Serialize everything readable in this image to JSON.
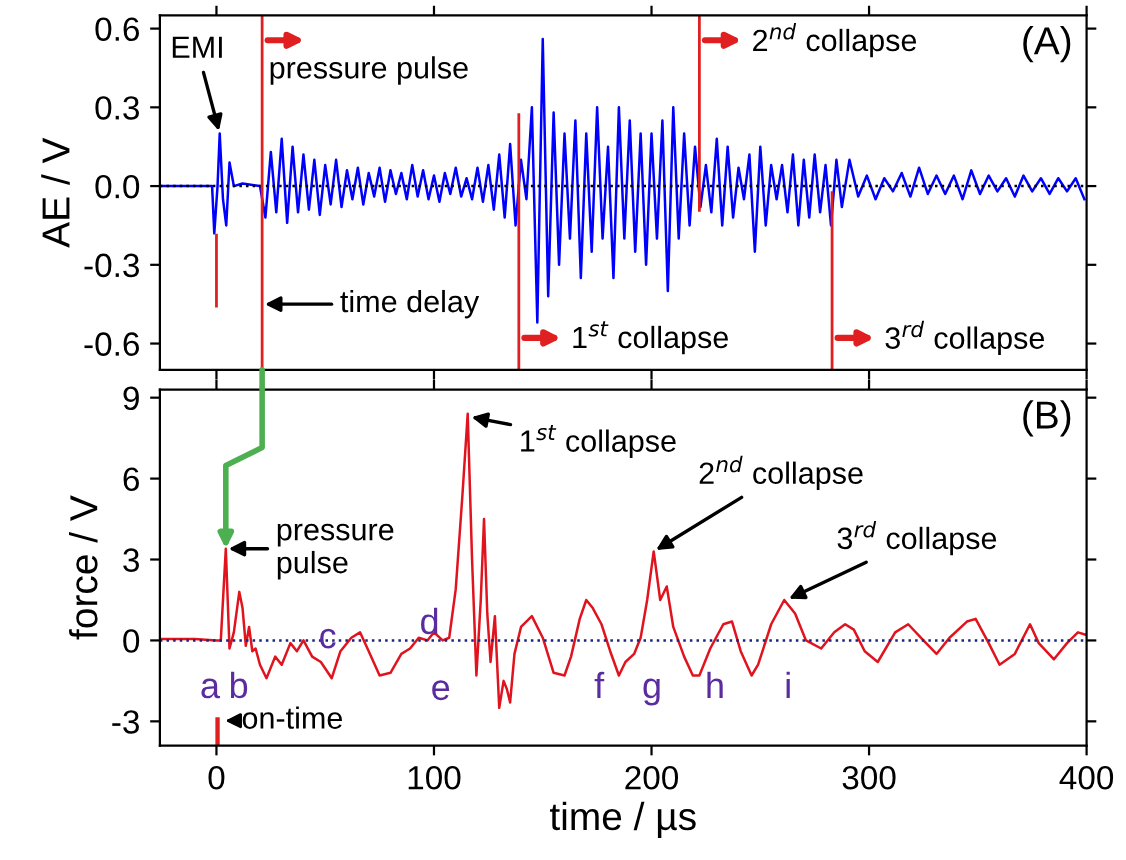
{
  "chart_data": [
    {
      "type": "line",
      "ylabel": "AE / V",
      "xlim": [
        -26,
        400
      ],
      "ylim": [
        -0.7,
        0.65
      ],
      "xticks": [
        0,
        100,
        200,
        300,
        400
      ],
      "yticks": [
        {
          "value": -0.6,
          "label": "-0.6"
        },
        {
          "value": -0.3,
          "label": "-0.3"
        },
        {
          "value": 0,
          "label": "0.0"
        },
        {
          "value": 0.3,
          "label": "0.3"
        },
        {
          "value": 0.6,
          "label": "0.6"
        }
      ],
      "tick_labels": "y",
      "grid": false,
      "marker": "none",
      "line_style": "solid",
      "series": [
        {
          "color": "#0000ff",
          "x": [
            -26,
            -10,
            -2,
            -1,
            0.5,
            1.5,
            3,
            4.5,
            6,
            8,
            12,
            20,
            22.5,
            25,
            27.5,
            30,
            32.5,
            35,
            37.5,
            40,
            42.5,
            45,
            47.5,
            50,
            52.5,
            55,
            57.5,
            60,
            62.5,
            65,
            67.5,
            70,
            72.5,
            75,
            77.5,
            80,
            82.5,
            85,
            87.5,
            90,
            92.5,
            95,
            97.5,
            100,
            102.5,
            105,
            107.5,
            110,
            112.5,
            115,
            117.5,
            120,
            122.5,
            125,
            127.5,
            130,
            132.5,
            135,
            137.5,
            140,
            142.5,
            145,
            147.5,
            150,
            152.5,
            155,
            157.5,
            160,
            162.5,
            165,
            167.5,
            170,
            172.5,
            175,
            177.5,
            180,
            182.5,
            185,
            187.5,
            190,
            192.5,
            195,
            197.5,
            200,
            202.5,
            205,
            207.5,
            210,
            212.5,
            215,
            217.5,
            220,
            222.5,
            225,
            227.5,
            230,
            232.5,
            235,
            237.5,
            240,
            242.5,
            245,
            247.5,
            250,
            252.5,
            255,
            257.5,
            260,
            262.5,
            265,
            267.5,
            270,
            272.5,
            275,
            277.5,
            280,
            282.5,
            285,
            287.5,
            291,
            295,
            299,
            303,
            307,
            311,
            315,
            319,
            323,
            327,
            331,
            335,
            339,
            343,
            347,
            351,
            355,
            359,
            363,
            367,
            371,
            375,
            379,
            383,
            387,
            391,
            395,
            399
          ],
          "values": [
            0,
            0,
            0,
            -0.18,
            0,
            0.2,
            -0.05,
            -0.15,
            0.09,
            0,
            0.01,
            0,
            -0.12,
            0.13,
            -0.1,
            0.18,
            -0.14,
            0.15,
            -0.1,
            0.12,
            -0.09,
            0.1,
            -0.11,
            0.08,
            -0.07,
            0.1,
            -0.08,
            0.06,
            -0.05,
            0.07,
            -0.07,
            0.05,
            -0.04,
            0.07,
            -0.06,
            0.06,
            -0.03,
            0.05,
            -0.05,
            0.08,
            -0.04,
            0.06,
            -0.05,
            0.04,
            -0.06,
            0.05,
            -0.03,
            0.07,
            -0.04,
            0.03,
            -0.05,
            0.07,
            -0.06,
            0.08,
            -0.09,
            0.12,
            -0.12,
            0.16,
            -0.15,
            0.1,
            -0.05,
            0.3,
            -0.52,
            0.56,
            -0.42,
            0.28,
            -0.3,
            0.2,
            -0.2,
            0.25,
            -0.35,
            0.2,
            -0.25,
            0.3,
            -0.2,
            0.15,
            -0.35,
            0.3,
            -0.2,
            0.25,
            -0.25,
            0.2,
            -0.3,
            0.2,
            -0.2,
            0.25,
            -0.4,
            0.3,
            -0.2,
            0.2,
            -0.15,
            0.15,
            -0.08,
            0.08,
            -0.1,
            0.18,
            -0.15,
            0.15,
            -0.12,
            0.07,
            -0.05,
            0.12,
            -0.25,
            0.15,
            -0.15,
            0.08,
            -0.05,
            0.08,
            -0.1,
            0.12,
            -0.15,
            0.1,
            -0.12,
            0.12,
            -0.1,
            0.08,
            -0.15,
            0.1,
            -0.08,
            0.1,
            -0.04,
            0.04,
            -0.05,
            0.03,
            -0.02,
            0.05,
            -0.04,
            0.07,
            -0.03,
            0.04,
            -0.03,
            0.04,
            -0.05,
            0.06,
            -0.03,
            0.04,
            -0.02,
            0.03,
            -0.04,
            0.04,
            -0.02,
            0.03,
            -0.03,
            0.03,
            -0.02,
            0.03,
            -0.05
          ]
        }
      ],
      "ref_lines": [
        {
          "axis": "y",
          "value": 0,
          "label": null,
          "color": "#000000",
          "line_style": "dotted"
        },
        {
          "axis": "x",
          "value": 21,
          "label": "pressure pulse",
          "color": "#e02020",
          "line_style": "solid"
        },
        {
          "axis": "x",
          "value": 139,
          "label": "1$^{st}$ collapse",
          "color": "#e02020",
          "line_style": "solid"
        },
        {
          "axis": "x",
          "value": 222,
          "label": "2$^{nd}$ collapse",
          "color": "#e02020",
          "line_style": "solid"
        },
        {
          "axis": "x",
          "value": 283,
          "label": "3$^{rd}$ collapse",
          "color": "#e02020",
          "line_style": "solid"
        },
        {
          "axis": "x",
          "value": 0,
          "label": null,
          "color": "#e02020",
          "line_style": "solid"
        }
      ],
      "annotations": [
        {
          "text": "EMI",
          "x": 1.5,
          "y": 0.2
        },
        {
          "text": "time delay",
          "x": 21,
          "y": -0.45
        },
        "(A)"
      ]
    },
    {
      "type": "line",
      "xlabel": "time / µs",
      "ylabel": "force / V",
      "xlim": [
        -26,
        400
      ],
      "ylim": [
        -3.9,
        9.3
      ],
      "xticks": [
        0,
        100,
        200,
        300,
        400
      ],
      "yticks": [
        -3,
        0,
        3,
        6,
        9
      ],
      "grid": false,
      "marker": "none",
      "line_style": "solid",
      "series": [
        {
          "color": "#e0141e",
          "x": [
            -26,
            -10,
            0,
            2,
            4.3,
            6,
            8,
            10.5,
            12,
            13.5,
            15,
            16.5,
            18,
            20,
            23,
            27,
            30,
            34,
            37,
            40,
            44,
            48,
            53,
            57,
            62,
            66,
            70,
            75,
            80,
            85,
            89,
            93,
            97,
            100,
            104,
            107,
            110,
            113,
            115.5,
            117.5,
            119.5,
            121.5,
            123,
            124.5,
            126,
            128,
            130,
            132,
            133.5,
            135,
            137,
            140,
            145,
            150,
            155,
            160,
            163,
            167,
            170,
            173,
            177,
            181,
            185,
            188,
            192,
            195,
            198,
            201,
            204,
            207,
            210,
            215,
            219,
            222,
            227,
            233,
            237,
            241,
            246,
            249,
            255,
            261,
            266,
            271,
            278,
            284,
            289,
            293,
            298,
            304,
            312,
            318,
            325,
            331,
            337,
            345,
            349,
            355,
            360,
            367,
            374,
            378,
            385,
            391,
            396,
            400
          ],
          "values": [
            0.05,
            0.05,
            0,
            0,
            3.4,
            -0.3,
            0.3,
            1.8,
            1.2,
            -0.2,
            0.5,
            -0.4,
            -0.3,
            -0.9,
            -1.4,
            -0.6,
            -0.9,
            -0.1,
            -0.4,
            0,
            -0.6,
            -0.8,
            -1.4,
            -0.4,
            0.1,
            0.3,
            -0.4,
            -1.3,
            -1.2,
            -0.5,
            -0.3,
            0.1,
            0,
            0.3,
            0,
            0.1,
            1.9,
            5.3,
            8.4,
            3,
            -1.3,
            1.5,
            4.5,
            1,
            -0.8,
            0.9,
            -2.5,
            -1.5,
            -1.8,
            -2.3,
            -0.5,
            0.5,
            0.9,
            0.1,
            -1.2,
            -1.3,
            -0.6,
            0.8,
            1.5,
            1.2,
            0.6,
            -0.4,
            -1.3,
            -0.8,
            -0.5,
            0.1,
            1.5,
            3.3,
            1.5,
            2.0,
            0.5,
            -0.6,
            -1.3,
            -1.3,
            -0.3,
            0.6,
            0.7,
            -0.4,
            -1.3,
            -0.9,
            0.6,
            1.5,
            1.0,
            0,
            -0.3,
            0.3,
            0.6,
            0.4,
            -0.4,
            -0.8,
            0.3,
            0.6,
            0,
            -0.5,
            0.1,
            0.7,
            0.8,
            -0.1,
            -0.9,
            -0.5,
            0.6,
            -0.1,
            -0.7,
            -0.1,
            0.3,
            0.2
          ]
        }
      ],
      "ref_lines": [
        {
          "axis": "y",
          "value": 0,
          "label": null,
          "color": "#1a237e",
          "line_style": "dotted"
        }
      ],
      "bands": [
        {
          "axis": "x",
          "from": -0.5,
          "to": 1.5,
          "label": "on-time",
          "color": "#e02020"
        }
      ],
      "annotations": [
        {
          "text": "pressure pulse",
          "x": 4.3,
          "y": 3.4
        },
        {
          "text": "1$^{st}$ collapse",
          "x": 116,
          "y": 8.3
        },
        {
          "text": "2$^{nd}$ collapse",
          "x": 201,
          "y": 3.3
        },
        {
          "text": "3$^{rd}$ collapse",
          "x": 262,
          "y": 1.5
        },
        "a",
        "b",
        "c",
        "d",
        "e",
        "f",
        "g",
        "h",
        "i",
        "(B)"
      ]
    }
  ]
}
